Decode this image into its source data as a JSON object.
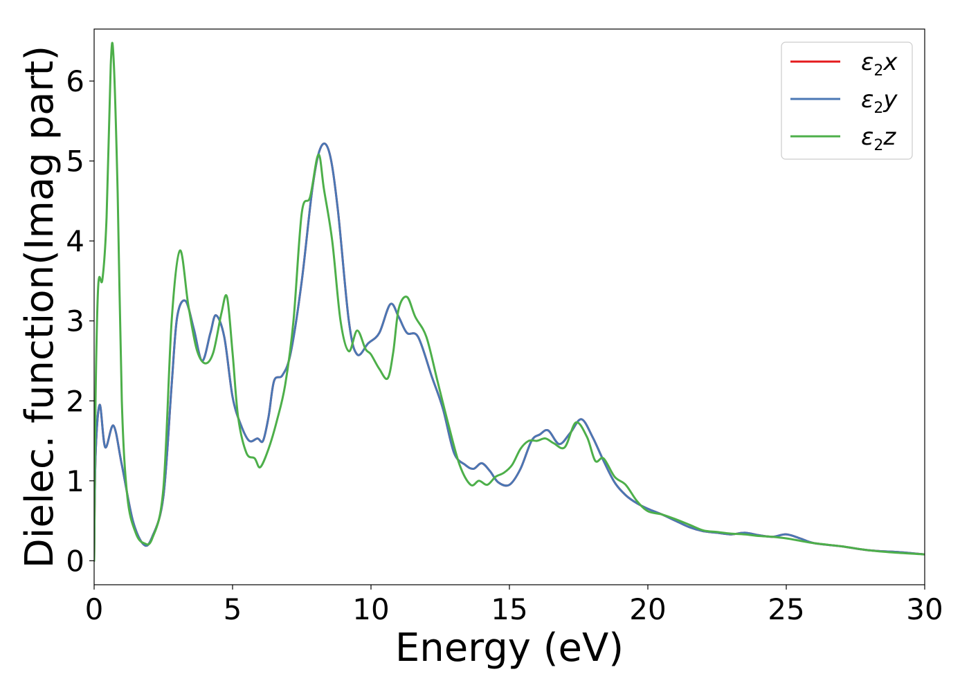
{
  "chart_data": {
    "type": "line",
    "xlabel": "Energy (eV)",
    "ylabel": "Dielec. function(Imag part)",
    "xlim": [
      0,
      30
    ],
    "ylim": [
      -0.3,
      6.65
    ],
    "xticks": [
      0,
      5,
      10,
      15,
      20,
      25,
      30
    ],
    "yticks": [
      0,
      1,
      2,
      3,
      4,
      5,
      6
    ],
    "grid": false,
    "legend_position": "top-right",
    "series": [
      {
        "name": "ε2x",
        "legend": {
          "base": "ε",
          "sub": "2",
          "var": "x"
        },
        "color": "#e41a1c",
        "x": [
          0,
          0.05,
          0.2,
          0.4,
          0.7,
          1.0,
          1.4,
          1.8,
          2.1,
          2.5,
          2.8,
          3.0,
          3.3,
          3.6,
          3.9,
          4.2,
          4.4,
          4.7,
          5.0,
          5.3,
          5.6,
          5.9,
          6.1,
          6.3,
          6.5,
          6.8,
          7.1,
          7.5,
          7.9,
          8.2,
          8.5,
          8.8,
          9.2,
          9.5,
          9.9,
          10.3,
          10.7,
          11.0,
          11.3,
          11.7,
          12.2,
          12.6,
          13.0,
          13.4,
          13.7,
          14.0,
          14.3,
          14.6,
          15.0,
          15.4,
          15.8,
          16.1,
          16.4,
          16.8,
          17.2,
          17.6,
          18.0,
          18.4,
          18.8,
          19.2,
          19.6,
          20.0,
          20.5,
          21.0,
          21.5,
          22.0,
          22.5,
          23.0,
          23.5,
          24.0,
          24.5,
          25.0,
          25.5,
          26.0,
          27.0,
          28.0,
          29.0,
          30.0
        ],
        "y": [
          0.0,
          1.3,
          1.95,
          1.42,
          1.69,
          1.2,
          0.5,
          0.2,
          0.3,
          0.8,
          2.2,
          3.05,
          3.25,
          2.9,
          2.5,
          2.85,
          3.07,
          2.8,
          2.05,
          1.7,
          1.5,
          1.53,
          1.5,
          1.8,
          2.25,
          2.32,
          2.6,
          3.5,
          4.7,
          5.18,
          5.1,
          4.4,
          3.0,
          2.58,
          2.72,
          2.85,
          3.21,
          3.05,
          2.85,
          2.8,
          2.3,
          1.9,
          1.35,
          1.2,
          1.15,
          1.22,
          1.12,
          0.98,
          0.95,
          1.15,
          1.5,
          1.58,
          1.63,
          1.46,
          1.6,
          1.77,
          1.55,
          1.25,
          0.98,
          0.82,
          0.72,
          0.65,
          0.58,
          0.5,
          0.42,
          0.37,
          0.35,
          0.33,
          0.35,
          0.32,
          0.3,
          0.33,
          0.28,
          0.22,
          0.18,
          0.13,
          0.11,
          0.08
        ]
      },
      {
        "name": "ε2y",
        "legend": {
          "base": "ε",
          "sub": "2",
          "var": "y"
        },
        "color": "#4a77b4",
        "x": [
          0,
          0.05,
          0.2,
          0.4,
          0.7,
          1.0,
          1.4,
          1.8,
          2.1,
          2.5,
          2.8,
          3.0,
          3.3,
          3.6,
          3.9,
          4.2,
          4.4,
          4.7,
          5.0,
          5.3,
          5.6,
          5.9,
          6.1,
          6.3,
          6.5,
          6.8,
          7.1,
          7.5,
          7.9,
          8.2,
          8.5,
          8.8,
          9.2,
          9.5,
          9.9,
          10.3,
          10.7,
          11.0,
          11.3,
          11.7,
          12.2,
          12.6,
          13.0,
          13.4,
          13.7,
          14.0,
          14.3,
          14.6,
          15.0,
          15.4,
          15.8,
          16.1,
          16.4,
          16.8,
          17.2,
          17.6,
          18.0,
          18.4,
          18.8,
          19.2,
          19.6,
          20.0,
          20.5,
          21.0,
          21.5,
          22.0,
          22.5,
          23.0,
          23.5,
          24.0,
          24.5,
          25.0,
          25.5,
          26.0,
          27.0,
          28.0,
          29.0,
          30.0
        ],
        "y": [
          0.0,
          1.3,
          1.95,
          1.42,
          1.69,
          1.2,
          0.5,
          0.2,
          0.3,
          0.8,
          2.2,
          3.05,
          3.25,
          2.9,
          2.5,
          2.85,
          3.07,
          2.8,
          2.05,
          1.7,
          1.5,
          1.53,
          1.5,
          1.8,
          2.25,
          2.32,
          2.6,
          3.5,
          4.7,
          5.18,
          5.1,
          4.4,
          3.0,
          2.58,
          2.72,
          2.85,
          3.21,
          3.05,
          2.85,
          2.8,
          2.3,
          1.9,
          1.35,
          1.2,
          1.15,
          1.22,
          1.12,
          0.98,
          0.95,
          1.15,
          1.5,
          1.58,
          1.63,
          1.46,
          1.6,
          1.77,
          1.55,
          1.25,
          0.98,
          0.82,
          0.72,
          0.65,
          0.58,
          0.5,
          0.42,
          0.37,
          0.35,
          0.33,
          0.35,
          0.32,
          0.3,
          0.33,
          0.28,
          0.22,
          0.18,
          0.13,
          0.11,
          0.08
        ]
      },
      {
        "name": "ε2z",
        "legend": {
          "base": "ε",
          "sub": "2",
          "var": "z"
        },
        "color": "#4daf4a",
        "x": [
          0,
          0.05,
          0.15,
          0.3,
          0.45,
          0.6,
          0.7,
          0.85,
          1.0,
          1.2,
          1.5,
          1.8,
          2.1,
          2.5,
          2.8,
          3.1,
          3.4,
          3.7,
          4.0,
          4.3,
          4.6,
          4.8,
          5.0,
          5.2,
          5.5,
          5.8,
          6.0,
          6.3,
          6.6,
          6.9,
          7.2,
          7.5,
          7.8,
          8.1,
          8.3,
          8.6,
          8.9,
          9.2,
          9.5,
          9.8,
          10.0,
          10.3,
          10.6,
          10.8,
          11.0,
          11.3,
          11.6,
          12.0,
          12.4,
          12.8,
          13.2,
          13.6,
          13.9,
          14.2,
          14.5,
          14.8,
          15.1,
          15.4,
          15.7,
          16.0,
          16.3,
          16.6,
          17.0,
          17.4,
          17.8,
          18.1,
          18.4,
          18.8,
          19.2,
          19.6,
          20.0,
          20.5,
          21.0,
          21.5,
          22.0,
          22.5,
          23.0,
          23.5,
          24.0,
          24.5,
          25.0,
          25.5,
          26.0,
          27.0,
          28.0,
          29.0,
          30.0
        ],
        "y": [
          0.0,
          2.0,
          3.45,
          3.52,
          4.3,
          6.2,
          6.3,
          4.6,
          2.0,
          0.8,
          0.35,
          0.22,
          0.28,
          0.9,
          3.0,
          3.88,
          3.2,
          2.65,
          2.47,
          2.6,
          3.1,
          3.3,
          2.6,
          1.8,
          1.35,
          1.28,
          1.17,
          1.4,
          1.75,
          2.2,
          3.0,
          4.35,
          4.55,
          5.08,
          4.65,
          4.0,
          3.0,
          2.62,
          2.88,
          2.65,
          2.58,
          2.4,
          2.28,
          2.6,
          3.15,
          3.3,
          3.05,
          2.8,
          2.25,
          1.7,
          1.2,
          0.95,
          1.0,
          0.95,
          1.05,
          1.1,
          1.2,
          1.4,
          1.5,
          1.5,
          1.53,
          1.47,
          1.42,
          1.73,
          1.55,
          1.25,
          1.28,
          1.05,
          0.95,
          0.75,
          0.62,
          0.58,
          0.52,
          0.45,
          0.38,
          0.36,
          0.34,
          0.33,
          0.31,
          0.3,
          0.28,
          0.25,
          0.22,
          0.18,
          0.13,
          0.1,
          0.08
        ]
      }
    ]
  }
}
